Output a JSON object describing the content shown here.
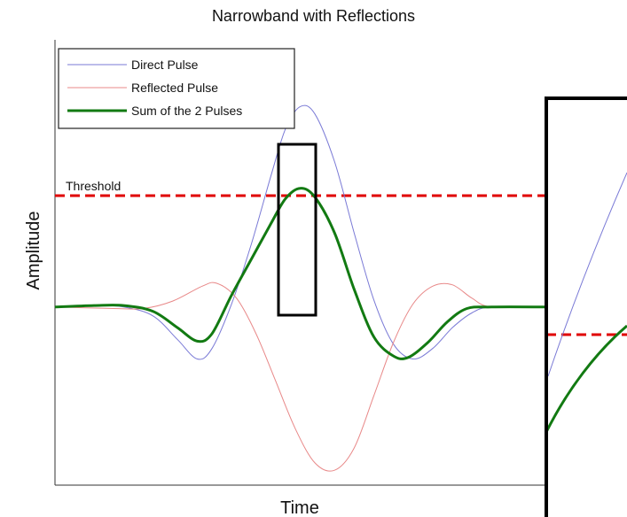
{
  "chart_data": {
    "type": "line",
    "title": "Narrowband with Reflections",
    "xlabel": "Time",
    "ylabel": "Amplitude",
    "xlim": [
      0,
      100
    ],
    "ylim": [
      -1.2,
      1.8
    ],
    "grid": false,
    "legend_position": "top-left",
    "threshold": {
      "label": "Threshold",
      "value": 0.75,
      "color": "#e00000"
    },
    "series": [
      {
        "name": "Direct Pulse",
        "color": "#7a7ad6",
        "points": [
          [
            0,
            0
          ],
          [
            8,
            0.01
          ],
          [
            14,
            0
          ],
          [
            20,
            -0.06
          ],
          [
            25,
            -0.22
          ],
          [
            29,
            -0.35
          ],
          [
            32,
            -0.28
          ],
          [
            36,
            0.02
          ],
          [
            40,
            0.42
          ],
          [
            44,
            0.88
          ],
          [
            47,
            1.2
          ],
          [
            50,
            1.35
          ],
          [
            53,
            1.3
          ],
          [
            57,
            0.98
          ],
          [
            61,
            0.5
          ],
          [
            65,
            0.05
          ],
          [
            69,
            -0.25
          ],
          [
            73,
            -0.35
          ],
          [
            77,
            -0.28
          ],
          [
            81,
            -0.14
          ],
          [
            85,
            -0.04
          ],
          [
            89,
            0
          ],
          [
            100,
            0
          ]
        ]
      },
      {
        "name": "Reflected Pulse",
        "color": "#e88888",
        "points": [
          [
            0,
            0
          ],
          [
            12,
            -0.01
          ],
          [
            18,
            -0.01
          ],
          [
            24,
            0.04
          ],
          [
            30,
            0.14
          ],
          [
            33,
            0.16
          ],
          [
            37,
            0.06
          ],
          [
            41,
            -0.18
          ],
          [
            45,
            -0.5
          ],
          [
            49,
            -0.82
          ],
          [
            53,
            -1.05
          ],
          [
            57,
            -1.1
          ],
          [
            61,
            -0.95
          ],
          [
            65,
            -0.6
          ],
          [
            69,
            -0.24
          ],
          [
            73,
            0.02
          ],
          [
            77,
            0.14
          ],
          [
            81,
            0.15
          ],
          [
            85,
            0.06
          ],
          [
            89,
            0
          ],
          [
            100,
            0
          ]
        ]
      },
      {
        "name": "Sum of the 2 Pulses",
        "color": "#127a12",
        "points": [
          [
            0,
            0
          ],
          [
            8,
            0.01
          ],
          [
            14,
            0.01
          ],
          [
            20,
            -0.03
          ],
          [
            25,
            -0.14
          ],
          [
            29,
            -0.23
          ],
          [
            32,
            -0.18
          ],
          [
            36,
            0.08
          ],
          [
            40,
            0.32
          ],
          [
            44,
            0.56
          ],
          [
            47,
            0.73
          ],
          [
            50,
            0.8
          ],
          [
            53,
            0.74
          ],
          [
            57,
            0.5
          ],
          [
            61,
            0.12
          ],
          [
            65,
            -0.2
          ],
          [
            69,
            -0.33
          ],
          [
            72,
            -0.34
          ],
          [
            76,
            -0.24
          ],
          [
            80,
            -0.1
          ],
          [
            84,
            -0.01
          ],
          [
            89,
            0
          ],
          [
            100,
            0
          ]
        ]
      }
    ]
  }
}
